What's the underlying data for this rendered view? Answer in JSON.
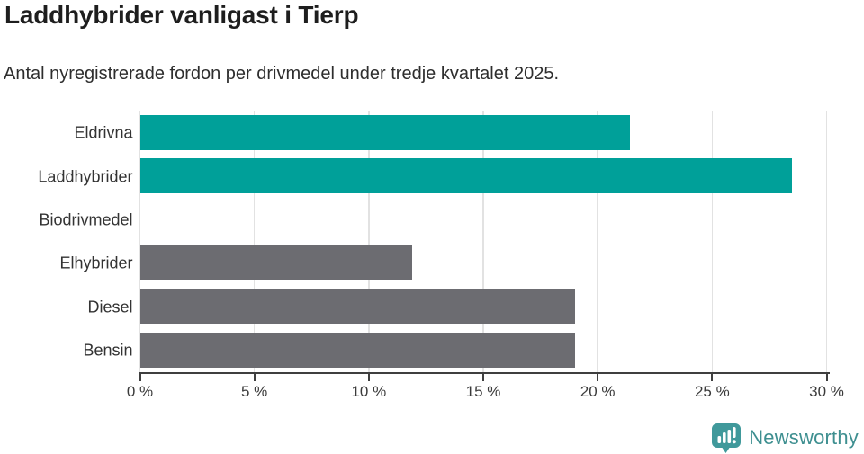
{
  "header": {
    "title": "Laddhybrider vanligast i Tierp",
    "subtitle": "Antal nyregistrerade fordon per drivmedel under tredje kvartalet 2025."
  },
  "chart_data": {
    "type": "bar",
    "orientation": "horizontal",
    "title": "Laddhybrider vanligast i Tierp",
    "subtitle": "Antal nyregistrerade fordon per drivmedel under tredje kvartalet 2025.",
    "categories": [
      "Eldrivna",
      "Laddhybrider",
      "Biodrivmedel",
      "Elhybrider",
      "Diesel",
      "Bensin"
    ],
    "values": [
      21.4,
      28.5,
      0,
      11.9,
      19,
      19
    ],
    "unit": "%",
    "xlim": [
      0,
      30
    ],
    "xticks": [
      0,
      5,
      10,
      15,
      20,
      25,
      30
    ],
    "xtick_suffix": " %",
    "grid": "vertical",
    "legend": "none",
    "bar_colors": [
      "#00a099",
      "#00a099",
      "#6c6c71",
      "#6c6c71",
      "#6c6c71",
      "#6c6c71"
    ]
  },
  "colors": {
    "bar_teal": "#00a099",
    "bar_gray": "#6c6c71",
    "axis": "#3f3f3f",
    "gridline": "#e2e2e2",
    "brand_teal": "#3e8f90"
  },
  "footer": {
    "brand": "Newsworthy",
    "logo_icon": "speech-bubble-with-bar-chart-and-exclamation"
  }
}
